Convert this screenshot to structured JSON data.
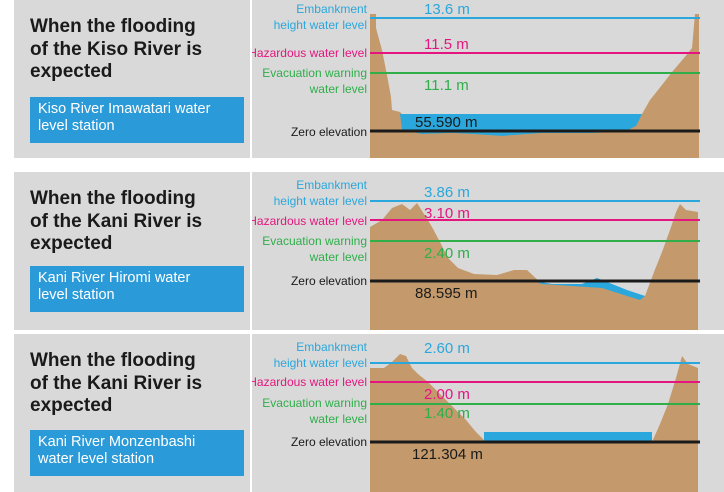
{
  "colors": {
    "panel_bg": "#d9d9d9",
    "station_box": "#2b9ad8",
    "ground": "#c49a6c",
    "water": "#2aa7dc",
    "embankment": "#2aa7dc",
    "hazard": "#e4157f",
    "evacuation": "#2fae4a",
    "zero": "#1a1a1a"
  },
  "labels": {
    "embankment_1": "Embankment",
    "embankment_2": "height water level",
    "hazard": "Hazardous water level",
    "evac_1": "Evacuation warning",
    "evac_2": "water level",
    "zero": "Zero elevation"
  },
  "panels": [
    {
      "heading": [
        "When the flooding",
        "of the Kiso River is",
        "expected"
      ],
      "station": [
        "Kiso River Imawatari water",
        "level station"
      ],
      "embankment": "13.6 m",
      "hazard": "11.5 m",
      "evacuation": "11.1 m",
      "zero": "55.590 m"
    },
    {
      "heading": [
        "When the flooding",
        "of the Kani River is",
        "expected"
      ],
      "station": [
        "Kani River Hiromi water",
        "level station"
      ],
      "embankment": "3.86 m",
      "hazard": "3.10 m",
      "evacuation": "2.40 m",
      "zero": "88.595 m"
    },
    {
      "heading": [
        "When the flooding",
        "of the Kani River is",
        "expected"
      ],
      "station": [
        "Kani River Monzenbashi",
        "water level station"
      ],
      "embankment": "2.60 m",
      "hazard": "2.00 m",
      "evacuation": "1.40 m",
      "zero": "121.304 m"
    }
  ]
}
